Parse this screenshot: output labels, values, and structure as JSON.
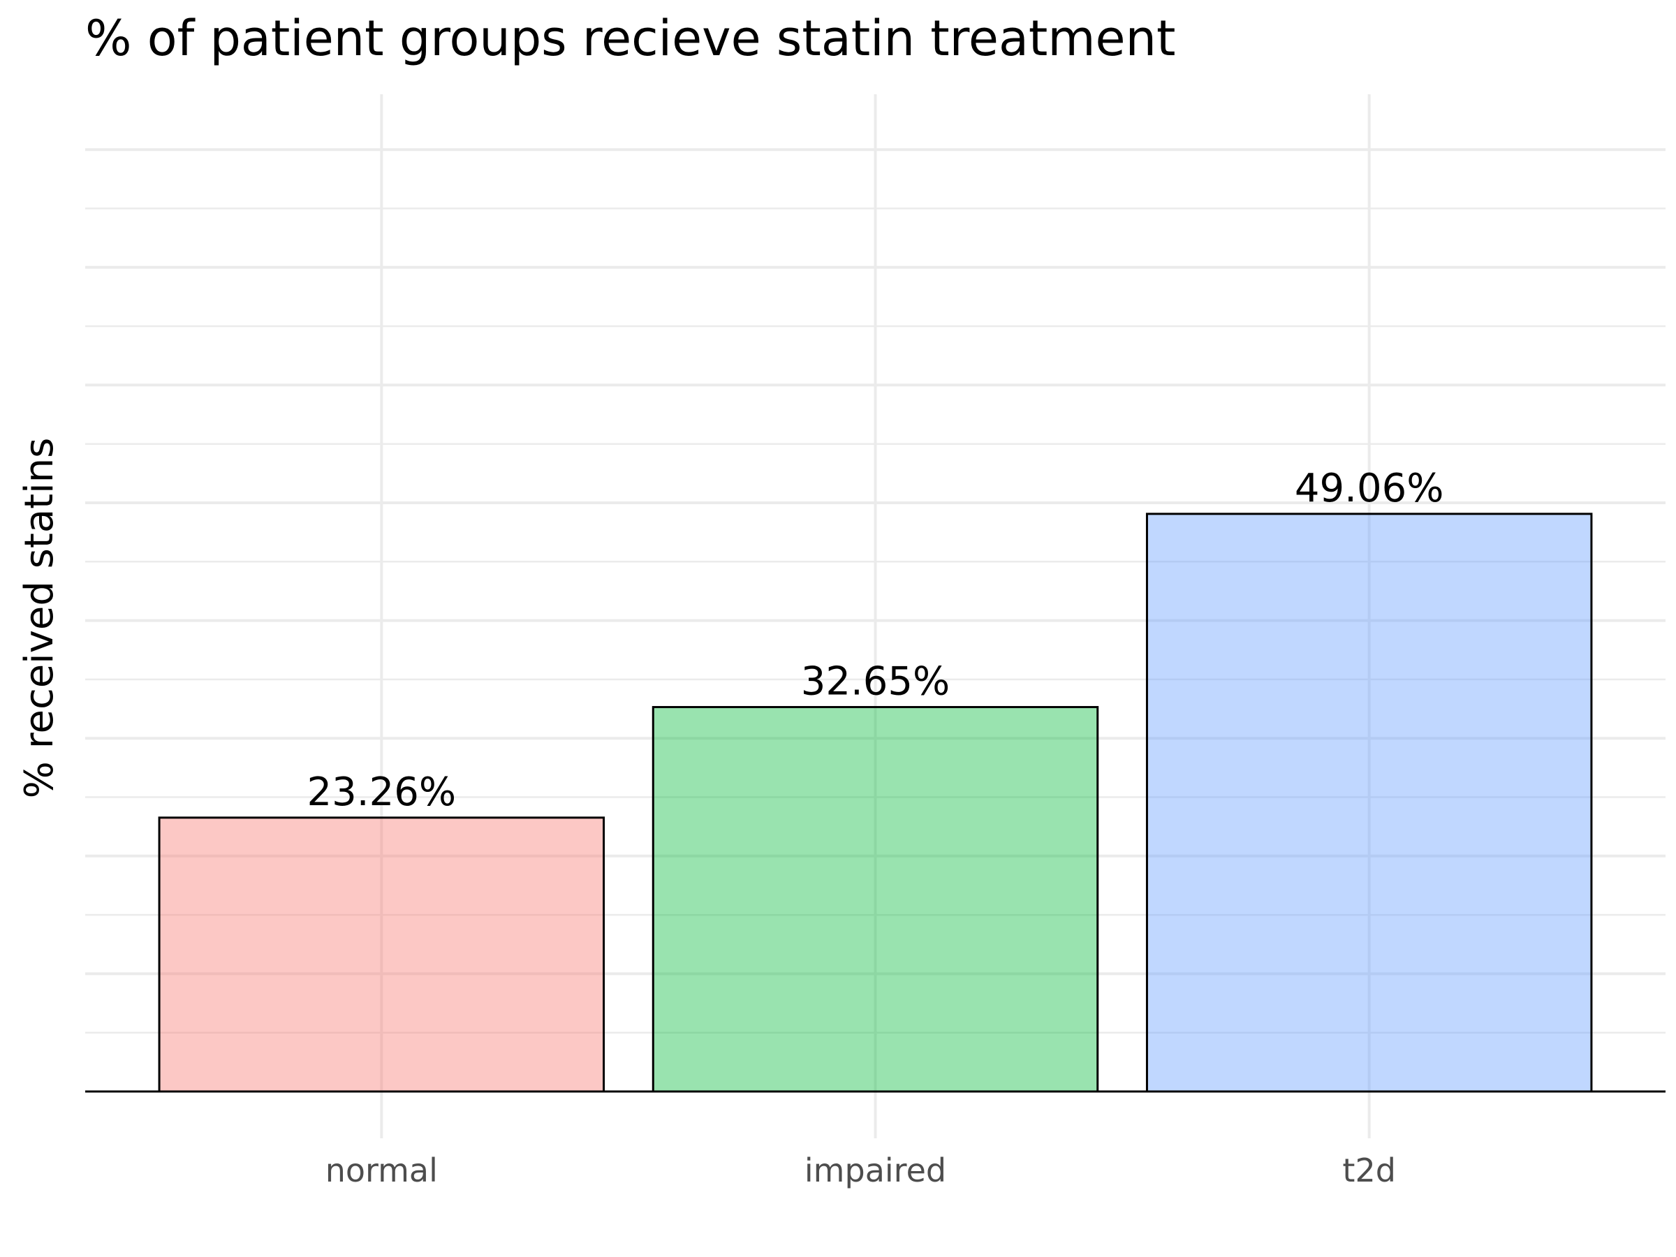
{
  "chart_data": {
    "type": "bar",
    "title": "% of patient groups recieve statin treatment",
    "xlabel": "",
    "ylabel": "% received statins",
    "categories": [
      "normal",
      "impaired",
      "t2d"
    ],
    "values": [
      23.26,
      32.65,
      49.06
    ],
    "data_labels": [
      "23.26%",
      "32.65%",
      "49.06%"
    ],
    "colors": [
      "#F8766D",
      "#00BA38",
      "#619CFF"
    ],
    "bar_opacity": 0.4,
    "bar_outline": "#000000",
    "ylim": [
      0,
      80
    ],
    "y_ticks_shown": false,
    "grid": true,
    "grid_color": "#ebebeb",
    "legend": "none"
  }
}
